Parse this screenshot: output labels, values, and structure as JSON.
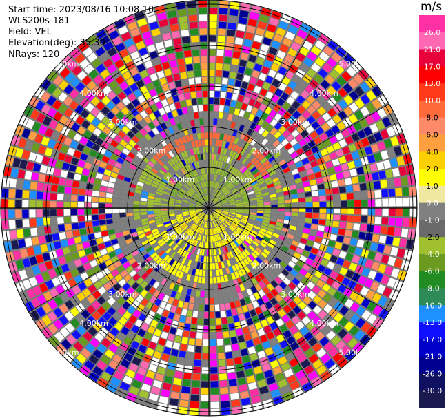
{
  "header": {
    "start_time": "Start time: 2023/08/16 10:08:10",
    "instrument": "WLS200s-181",
    "field": "Field: VEL",
    "elevation": "Elevation(deg): 35.30",
    "nrays": "NRays: 120"
  },
  "colorbar": {
    "unit": "m/s",
    "ticks": [
      "26.0",
      "21.0",
      "17.0",
      "13.0",
      "10.0",
      "8.0",
      "6.0",
      "4.0",
      "2.0",
      "1.0",
      "0.0",
      "-1.0",
      "-2.0",
      "-4.0",
      "-6.0",
      "-8.0",
      "-10.0",
      "-13.0",
      "-17.0",
      "-21.0",
      "-26.0",
      "-30.0"
    ],
    "colors": [
      "#ff2fa4",
      "#ff69b4",
      "#e8003a",
      "#ff0000",
      "#ff3a1a",
      "#ff6a3a",
      "#ff8a6a",
      "#ffa040",
      "#ffd000",
      "#ffff00",
      "#f0e8a0",
      "#808080",
      "#6a6a6a",
      "#a0c030",
      "#6a9a20",
      "#228b22",
      "#2e8b57",
      "#1e90ff",
      "#1010ff",
      "#0000c8",
      "#000090",
      "#101060",
      "#1a1a50"
    ]
  },
  "rings": {
    "labels": [
      "1.00km",
      "2.00km",
      "3.00km",
      "4.00km",
      "5.00km"
    ]
  }
}
